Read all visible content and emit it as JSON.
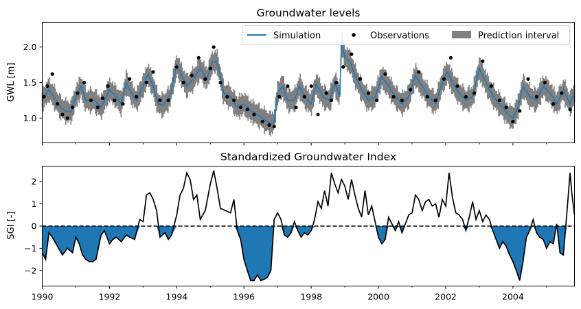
{
  "chart_data": [
    {
      "type": "line",
      "title": "Groundwater levels",
      "xlabel": "",
      "ylabel": "GWL [m]",
      "xlim": [
        1990.0,
        2005.83
      ],
      "ylim": [
        0.65,
        2.35
      ],
      "yticks": [
        1.0,
        1.5,
        2.0
      ],
      "ytick_labels": [
        "1.0",
        "1.5",
        "2.0"
      ],
      "legend_position": "top-right",
      "legend": [
        "Simulation",
        "Observations",
        "Prediction interval"
      ],
      "series": [
        {
          "name": "Simulation",
          "kind": "line",
          "color": "#1f77b4",
          "x": [
            1990.0,
            1990.2,
            1990.35,
            1990.55,
            1990.7,
            1990.85,
            1991.0,
            1991.15,
            1991.3,
            1991.55,
            1991.75,
            1992.0,
            1992.2,
            1992.35,
            1992.5,
            1992.65,
            1992.8,
            1993.0,
            1993.15,
            1993.3,
            1993.45,
            1993.6,
            1993.8,
            1994.0,
            1994.15,
            1994.3,
            1994.5,
            1994.7,
            1994.9,
            1995.05,
            1995.2,
            1995.4,
            1995.6,
            1995.8,
            1996.0,
            1996.2,
            1996.4,
            1996.6,
            1996.8,
            1996.9,
            1997.0,
            1997.15,
            1997.3,
            1997.5,
            1997.65,
            1997.8,
            1998.0,
            1998.15,
            1998.35,
            1998.55,
            1998.7,
            1998.85,
            1998.9,
            1999.0,
            1999.15,
            1999.3,
            1999.5,
            1999.7,
            1999.9,
            2000.1,
            2000.3,
            2000.5,
            2000.7,
            2000.9,
            2001.1,
            2001.3,
            2001.5,
            2001.7,
            2001.9,
            2002.05,
            2002.2,
            2002.4,
            2002.6,
            2002.8,
            2003.0,
            2003.15,
            2003.3,
            2003.5,
            2003.7,
            2003.85,
            2004.0,
            2004.15,
            2004.3,
            2004.5,
            2004.7,
            2004.9,
            2005.1,
            2005.3,
            2005.5,
            2005.7,
            2005.83
          ],
          "y": [
            1.25,
            1.4,
            1.3,
            1.15,
            1.1,
            1.08,
            1.3,
            1.45,
            1.25,
            1.25,
            1.15,
            1.4,
            1.3,
            1.2,
            1.5,
            1.35,
            1.25,
            1.45,
            1.62,
            1.45,
            1.2,
            1.18,
            1.3,
            1.75,
            1.6,
            1.45,
            1.55,
            1.7,
            1.55,
            1.78,
            1.8,
            1.35,
            1.3,
            1.15,
            1.2,
            1.1,
            1.05,
            0.98,
            0.92,
            0.95,
            1.35,
            1.45,
            1.25,
            1.25,
            1.45,
            1.3,
            1.2,
            1.48,
            1.3,
            1.25,
            1.5,
            1.3,
            2.08,
            1.85,
            1.8,
            1.6,
            1.4,
            1.25,
            1.3,
            1.58,
            1.45,
            1.3,
            1.2,
            1.3,
            1.6,
            1.45,
            1.3,
            1.2,
            1.5,
            1.65,
            1.5,
            1.35,
            1.25,
            1.3,
            1.7,
            1.55,
            1.4,
            1.25,
            1.15,
            1.05,
            1.0,
            1.15,
            1.45,
            1.3,
            1.25,
            1.45,
            1.35,
            1.2,
            1.4,
            1.2,
            1.35
          ]
        },
        {
          "name": "Observations",
          "kind": "scatter",
          "color": "#000000",
          "x": [
            1990.05,
            1990.15,
            1990.3,
            1990.45,
            1990.6,
            1990.75,
            1990.9,
            1991.05,
            1991.25,
            1991.45,
            1991.65,
            1991.8,
            1991.95,
            1992.15,
            1992.4,
            1992.6,
            1992.8,
            1993.1,
            1993.3,
            1993.5,
            1993.75,
            1994.0,
            1994.2,
            1994.45,
            1994.65,
            1994.85,
            1995.0,
            1995.1,
            1995.3,
            1995.5,
            1995.7,
            1995.9,
            1996.1,
            1996.3,
            1996.55,
            1996.75,
            1996.9,
            1997.05,
            1997.3,
            1997.55,
            1997.8,
            1998.0,
            1998.2,
            1998.45,
            1998.6,
            1998.75,
            1998.95,
            1999.2,
            1999.45,
            1999.7,
            1999.95,
            2000.2,
            2000.45,
            2000.7,
            2000.95,
            2001.2,
            2001.45,
            2001.7,
            2001.95,
            2002.15,
            2002.35,
            2002.6,
            2002.85,
            2003.1,
            2003.35,
            2003.6,
            2003.8,
            2004.0,
            2004.2,
            2004.45,
            2004.7,
            2004.95,
            2005.2,
            2005.45,
            2005.7
          ],
          "y": [
            1.3,
            1.45,
            1.62,
            1.2,
            1.05,
            1.0,
            1.15,
            1.35,
            1.5,
            1.25,
            1.15,
            1.28,
            1.45,
            1.25,
            1.2,
            1.55,
            1.3,
            1.5,
            1.65,
            1.25,
            1.25,
            1.72,
            1.5,
            1.6,
            1.85,
            1.55,
            1.7,
            2.0,
            1.5,
            1.3,
            1.25,
            1.15,
            1.12,
            1.05,
            0.95,
            0.9,
            0.88,
            1.3,
            1.45,
            1.15,
            1.3,
            1.45,
            1.05,
            1.35,
            1.25,
            1.5,
            1.72,
            1.9,
            1.55,
            1.35,
            1.25,
            1.62,
            1.3,
            1.25,
            1.4,
            1.65,
            1.3,
            1.25,
            1.55,
            1.85,
            1.45,
            1.3,
            1.35,
            1.8,
            1.45,
            1.25,
            1.15,
            0.95,
            1.1,
            1.55,
            1.3,
            1.5,
            1.2,
            1.35,
            1.12
          ]
        },
        {
          "name": "Prediction interval",
          "kind": "band",
          "color": "#808080",
          "half_width": 0.2
        }
      ]
    },
    {
      "type": "area",
      "title": "Standardized Groundwater Index",
      "xlabel": "",
      "ylabel": "SGI [-]",
      "xlim": [
        1990.0,
        2005.83
      ],
      "ylim": [
        -2.7,
        2.7
      ],
      "yticks": [
        -2,
        -1,
        0,
        1,
        2
      ],
      "ytick_labels": [
        "−2",
        "−1",
        "0",
        "1",
        "2"
      ],
      "xticks": [
        1990,
        1992,
        1994,
        1996,
        1998,
        2000,
        2002,
        2004
      ],
      "xtick_labels": [
        "1990",
        "1992",
        "1994",
        "1996",
        "1998",
        "2000",
        "2002",
        "2004"
      ],
      "zero_line": true,
      "series": [
        {
          "kind": "line",
          "color": "#000000",
          "fill_negative_color": "#1f77b4",
          "x": [
            1990.0,
            1990.1,
            1990.2,
            1990.3,
            1990.45,
            1990.6,
            1990.75,
            1990.9,
            1991.0,
            1991.1,
            1991.2,
            1991.3,
            1991.4,
            1991.5,
            1991.6,
            1991.75,
            1991.85,
            1992.0,
            1992.1,
            1992.2,
            1992.35,
            1992.5,
            1992.6,
            1992.75,
            1992.9,
            1993.0,
            1993.1,
            1993.2,
            1993.3,
            1993.4,
            1993.5,
            1993.65,
            1993.75,
            1993.85,
            1994.0,
            1994.1,
            1994.2,
            1994.3,
            1994.4,
            1994.5,
            1994.6,
            1994.7,
            1994.85,
            1995.0,
            1995.1,
            1995.2,
            1995.3,
            1995.45,
            1995.6,
            1995.7,
            1995.8,
            1995.9,
            1996.0,
            1996.1,
            1996.2,
            1996.3,
            1996.4,
            1996.5,
            1996.6,
            1996.7,
            1996.8,
            1996.9,
            1997.0,
            1997.1,
            1997.2,
            1997.3,
            1997.4,
            1997.5,
            1997.6,
            1997.7,
            1997.8,
            1997.9,
            1998.0,
            1998.1,
            1998.2,
            1998.3,
            1998.4,
            1998.5,
            1998.6,
            1998.7,
            1998.8,
            1998.9,
            1999.0,
            1999.1,
            1999.2,
            1999.3,
            1999.4,
            1999.5,
            1999.6,
            1999.7,
            1999.8,
            1999.9,
            2000.0,
            2000.1,
            2000.2,
            2000.3,
            2000.4,
            2000.5,
            2000.6,
            2000.7,
            2000.8,
            2000.9,
            2001.0,
            2001.1,
            2001.2,
            2001.3,
            2001.4,
            2001.5,
            2001.6,
            2001.7,
            2001.8,
            2001.9,
            2002.0,
            2002.1,
            2002.2,
            2002.3,
            2002.4,
            2002.5,
            2002.6,
            2002.7,
            2002.8,
            2002.9,
            2003.0,
            2003.1,
            2003.2,
            2003.3,
            2003.4,
            2003.5,
            2003.6,
            2003.7,
            2003.8,
            2003.9,
            2004.0,
            2004.1,
            2004.2,
            2004.3,
            2004.4,
            2004.5,
            2004.6,
            2004.7,
            2004.8,
            2004.9,
            2005.0,
            2005.1,
            2005.2,
            2005.3,
            2005.4,
            2005.5,
            2005.6,
            2005.7,
            2005.75,
            2005.83
          ],
          "y": [
            -1.2,
            -1.5,
            -0.3,
            -0.5,
            -0.9,
            -1.3,
            -1.0,
            -1.2,
            -0.5,
            -0.8,
            -1.3,
            -1.5,
            -1.6,
            -1.6,
            -1.5,
            -0.4,
            -0.2,
            -0.8,
            -0.6,
            -0.5,
            -0.7,
            -0.4,
            -0.5,
            -0.6,
            0.3,
            0.2,
            1.4,
            1.5,
            1.2,
            0.7,
            -0.5,
            -0.3,
            -0.6,
            -0.4,
            0.5,
            1.4,
            1.7,
            2.4,
            2.1,
            1.2,
            1.4,
            0.3,
            0.7,
            1.9,
            2.5,
            1.7,
            0.8,
            0.7,
            0.6,
            1.2,
            -0.2,
            -0.6,
            -1.5,
            -2.0,
            -2.45,
            -2.45,
            -2.2,
            -2.45,
            -2.4,
            -2.3,
            -2.0,
            0.3,
            0.6,
            0.3,
            -0.4,
            -0.5,
            -0.3,
            0.2,
            -0.2,
            -0.5,
            -0.3,
            -0.4,
            -0.2,
            0.3,
            1.1,
            0.8,
            1.6,
            0.9,
            2.4,
            1.9,
            1.5,
            2.1,
            1.8,
            1.2,
            2.1,
            1.4,
            0.8,
            0.4,
            1.6,
            0.5,
            0.9,
            0.2,
            -0.5,
            -0.8,
            -0.6,
            0.4,
            0.1,
            -0.2,
            0.2,
            -0.3,
            0.1,
            0.5,
            0.6,
            1.4,
            1.2,
            0.7,
            1.1,
            1.2,
            0.9,
            1.0,
            0.4,
            1.2,
            0.9,
            2.4,
            1.3,
            0.6,
            0.5,
            0.3,
            -0.2,
            0.4,
            1.1,
            0.3,
            0.7,
            0.2,
            0.5,
            0.3,
            -0.2,
            -0.6,
            -1.0,
            -0.7,
            -0.9,
            -1.3,
            -1.6,
            -2.0,
            -2.45,
            -1.6,
            -0.5,
            -0.2,
            0.3,
            -0.3,
            -0.5,
            -0.6,
            -1.0,
            -0.7,
            -0.8,
            0.1,
            -1.2,
            -1.3,
            0.5,
            2.4,
            1.5,
            0.5
          ]
        }
      ]
    }
  ]
}
